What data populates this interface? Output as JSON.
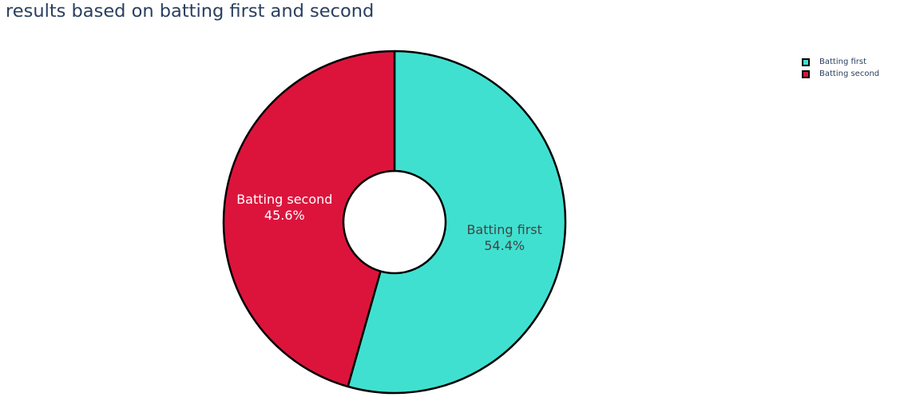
{
  "chart_data": {
    "type": "pie",
    "hole": true,
    "title": "results based on batting first and second",
    "labels": [
      "Batting first",
      "Batting second"
    ],
    "values": [
      54.4,
      45.6
    ],
    "percent_labels": [
      "54.4%",
      "45.6%"
    ],
    "colors": [
      "#40e0d0",
      "#dc143c"
    ],
    "text_colors": [
      "#444444",
      "#ffffff"
    ],
    "legend_position": "top-right",
    "start_angle": "top",
    "direction": "clockwise"
  }
}
